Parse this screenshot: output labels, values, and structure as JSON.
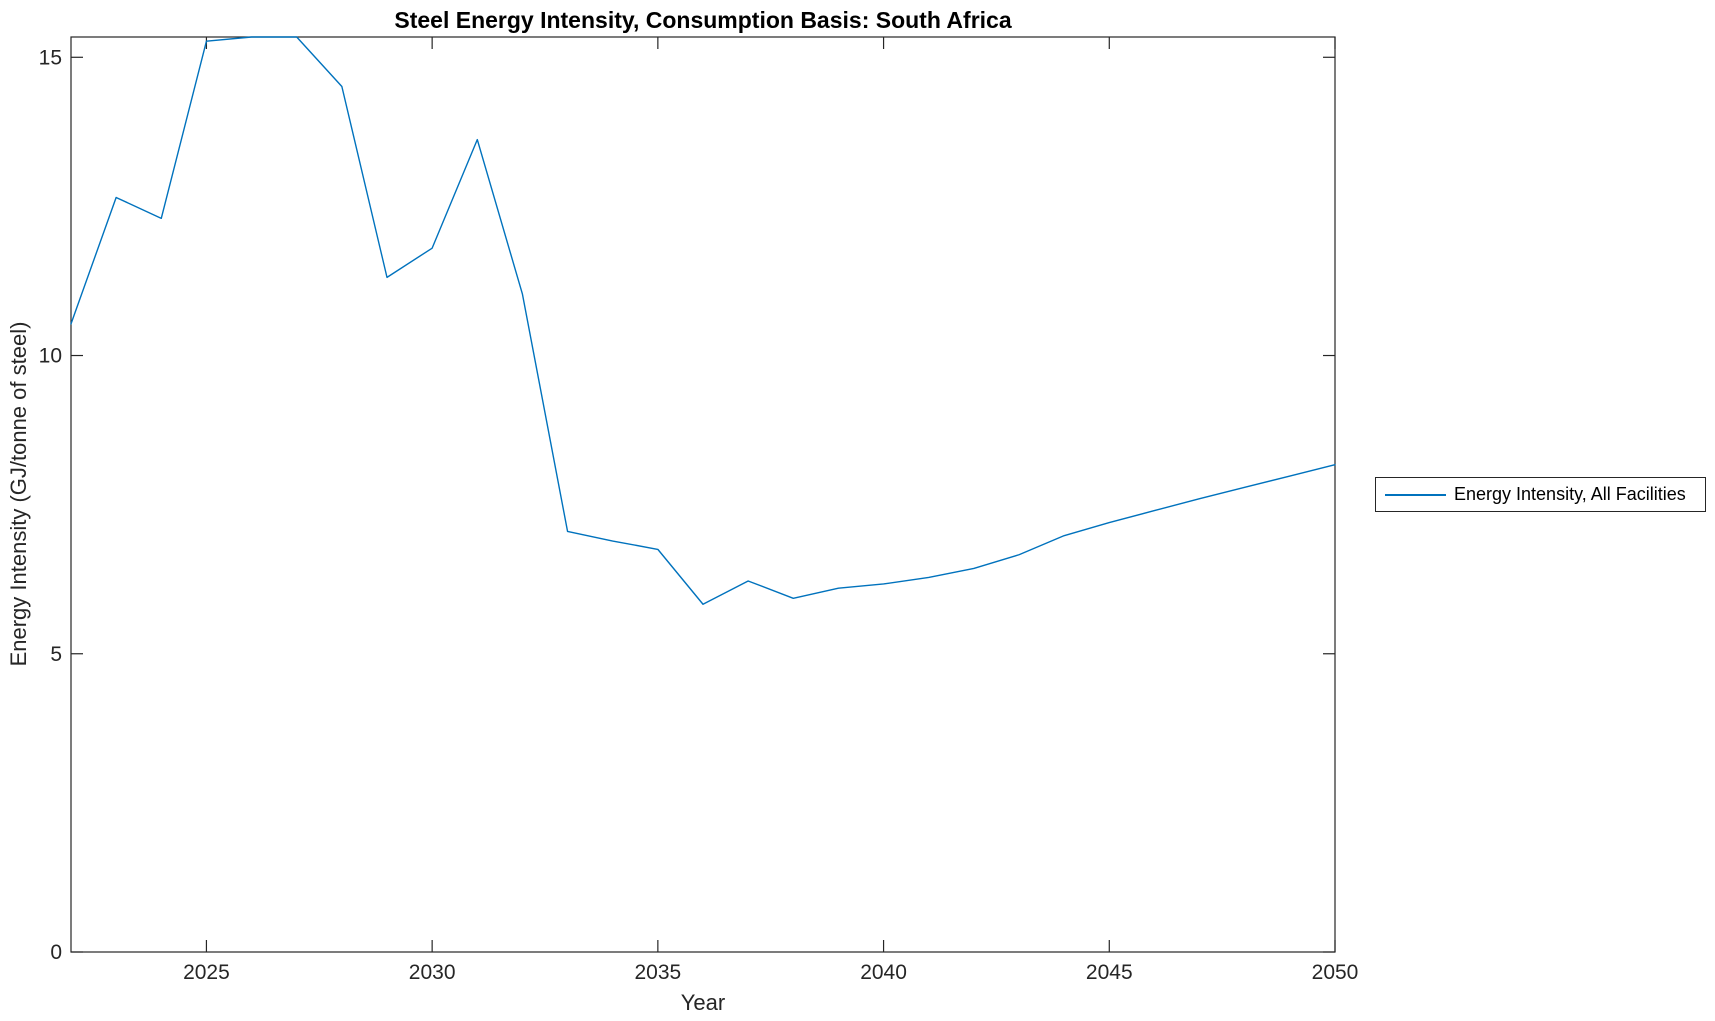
{
  "figure": {
    "background": "#ffffff"
  },
  "chart_data": {
    "type": "line",
    "title": "Steel Energy Intensity, Consumption Basis: South Africa",
    "xlabel": "Year",
    "ylabel": "Energy Intensity (GJ/tonne of steel)",
    "xlim": [
      2022,
      2050
    ],
    "ylim": [
      0,
      15.34
    ],
    "xticks": [
      2025,
      2030,
      2035,
      2040,
      2045,
      2050
    ],
    "yticks": [
      0,
      5,
      10,
      15
    ],
    "grid": false,
    "legend": {
      "position": "outside-right",
      "entries": [
        "Energy Intensity, All Facilities"
      ]
    },
    "colors": {
      "line": "#0072BD",
      "axis": "#262626",
      "title": "#000000"
    },
    "series": [
      {
        "name": "Energy Intensity, All Facilities",
        "x": [
          2022,
          2023,
          2024,
          2025,
          2026,
          2027,
          2028,
          2029,
          2030,
          2031,
          2032,
          2033,
          2034,
          2035,
          2036,
          2037,
          2038,
          2039,
          2040,
          2041,
          2042,
          2043,
          2044,
          2045,
          2046,
          2047,
          2048,
          2049,
          2050
        ],
        "values": [
          10.53,
          12.65,
          12.3,
          15.27,
          15.34,
          15.34,
          14.51,
          11.31,
          11.8,
          13.62,
          11.03,
          7.05,
          6.89,
          6.75,
          5.83,
          6.22,
          5.93,
          6.1,
          6.17,
          6.28,
          6.43,
          6.66,
          6.98,
          7.2,
          7.4,
          7.6,
          7.79,
          7.98,
          8.17
        ]
      }
    ]
  }
}
